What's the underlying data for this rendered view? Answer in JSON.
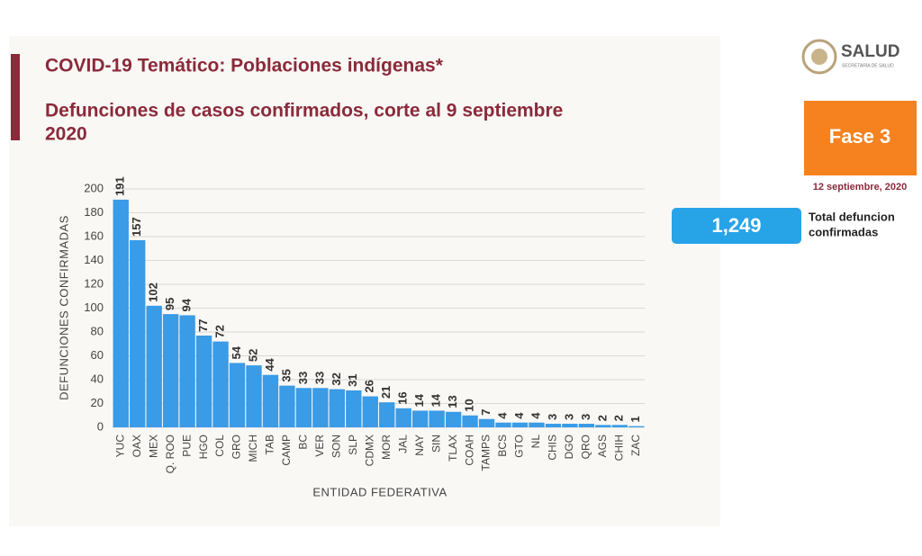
{
  "header": {
    "title": "COVID-19 Temático: Poblaciones indígenas*",
    "subtitle": [
      "Defunciones de casos confirmados, corte al 9 septiembre",
      "2020"
    ],
    "logo": "SALUD",
    "logo_sub": "SECRETARÍA DE SALUD",
    "phase": "Fase 3",
    "date": "12 septiembre, 2020"
  },
  "total": {
    "value": "1,249",
    "label": [
      "Total defuncion",
      "confirmadas"
    ]
  },
  "chart_data": {
    "type": "bar",
    "y_label": "DEFUNCIONES CONFIRMADAS",
    "x_label": "ENTIDAD FEDERATIVA",
    "categories": [
      "YUC",
      "OAX",
      "MEX",
      "Q. ROO",
      "PUE",
      "HGO",
      "COL",
      "GRO",
      "MICH",
      "TAB",
      "CAMP",
      "BC",
      "VER",
      "SON",
      "SLP",
      "CDMX",
      "MOR",
      "JAL",
      "NAY",
      "SIN",
      "TLAX",
      "COAH",
      "TAMPS",
      "BCS",
      "GTO",
      "NL",
      "CHIS",
      "DGO",
      "QRO",
      "AGS",
      "CHIH",
      "ZAC"
    ],
    "values": [
      191,
      157,
      102,
      95,
      94,
      77,
      72,
      54,
      52,
      44,
      35,
      33,
      33,
      32,
      31,
      26,
      21,
      16,
      14,
      14,
      13,
      10,
      7,
      4,
      4,
      4,
      3,
      3,
      3,
      2,
      2,
      1
    ],
    "color": "#3a9be6",
    "ylim": [
      0,
      200
    ],
    "yticks": [
      0,
      20,
      40,
      60,
      80,
      100,
      120,
      140,
      160,
      180,
      200
    ],
    "grid": true
  }
}
